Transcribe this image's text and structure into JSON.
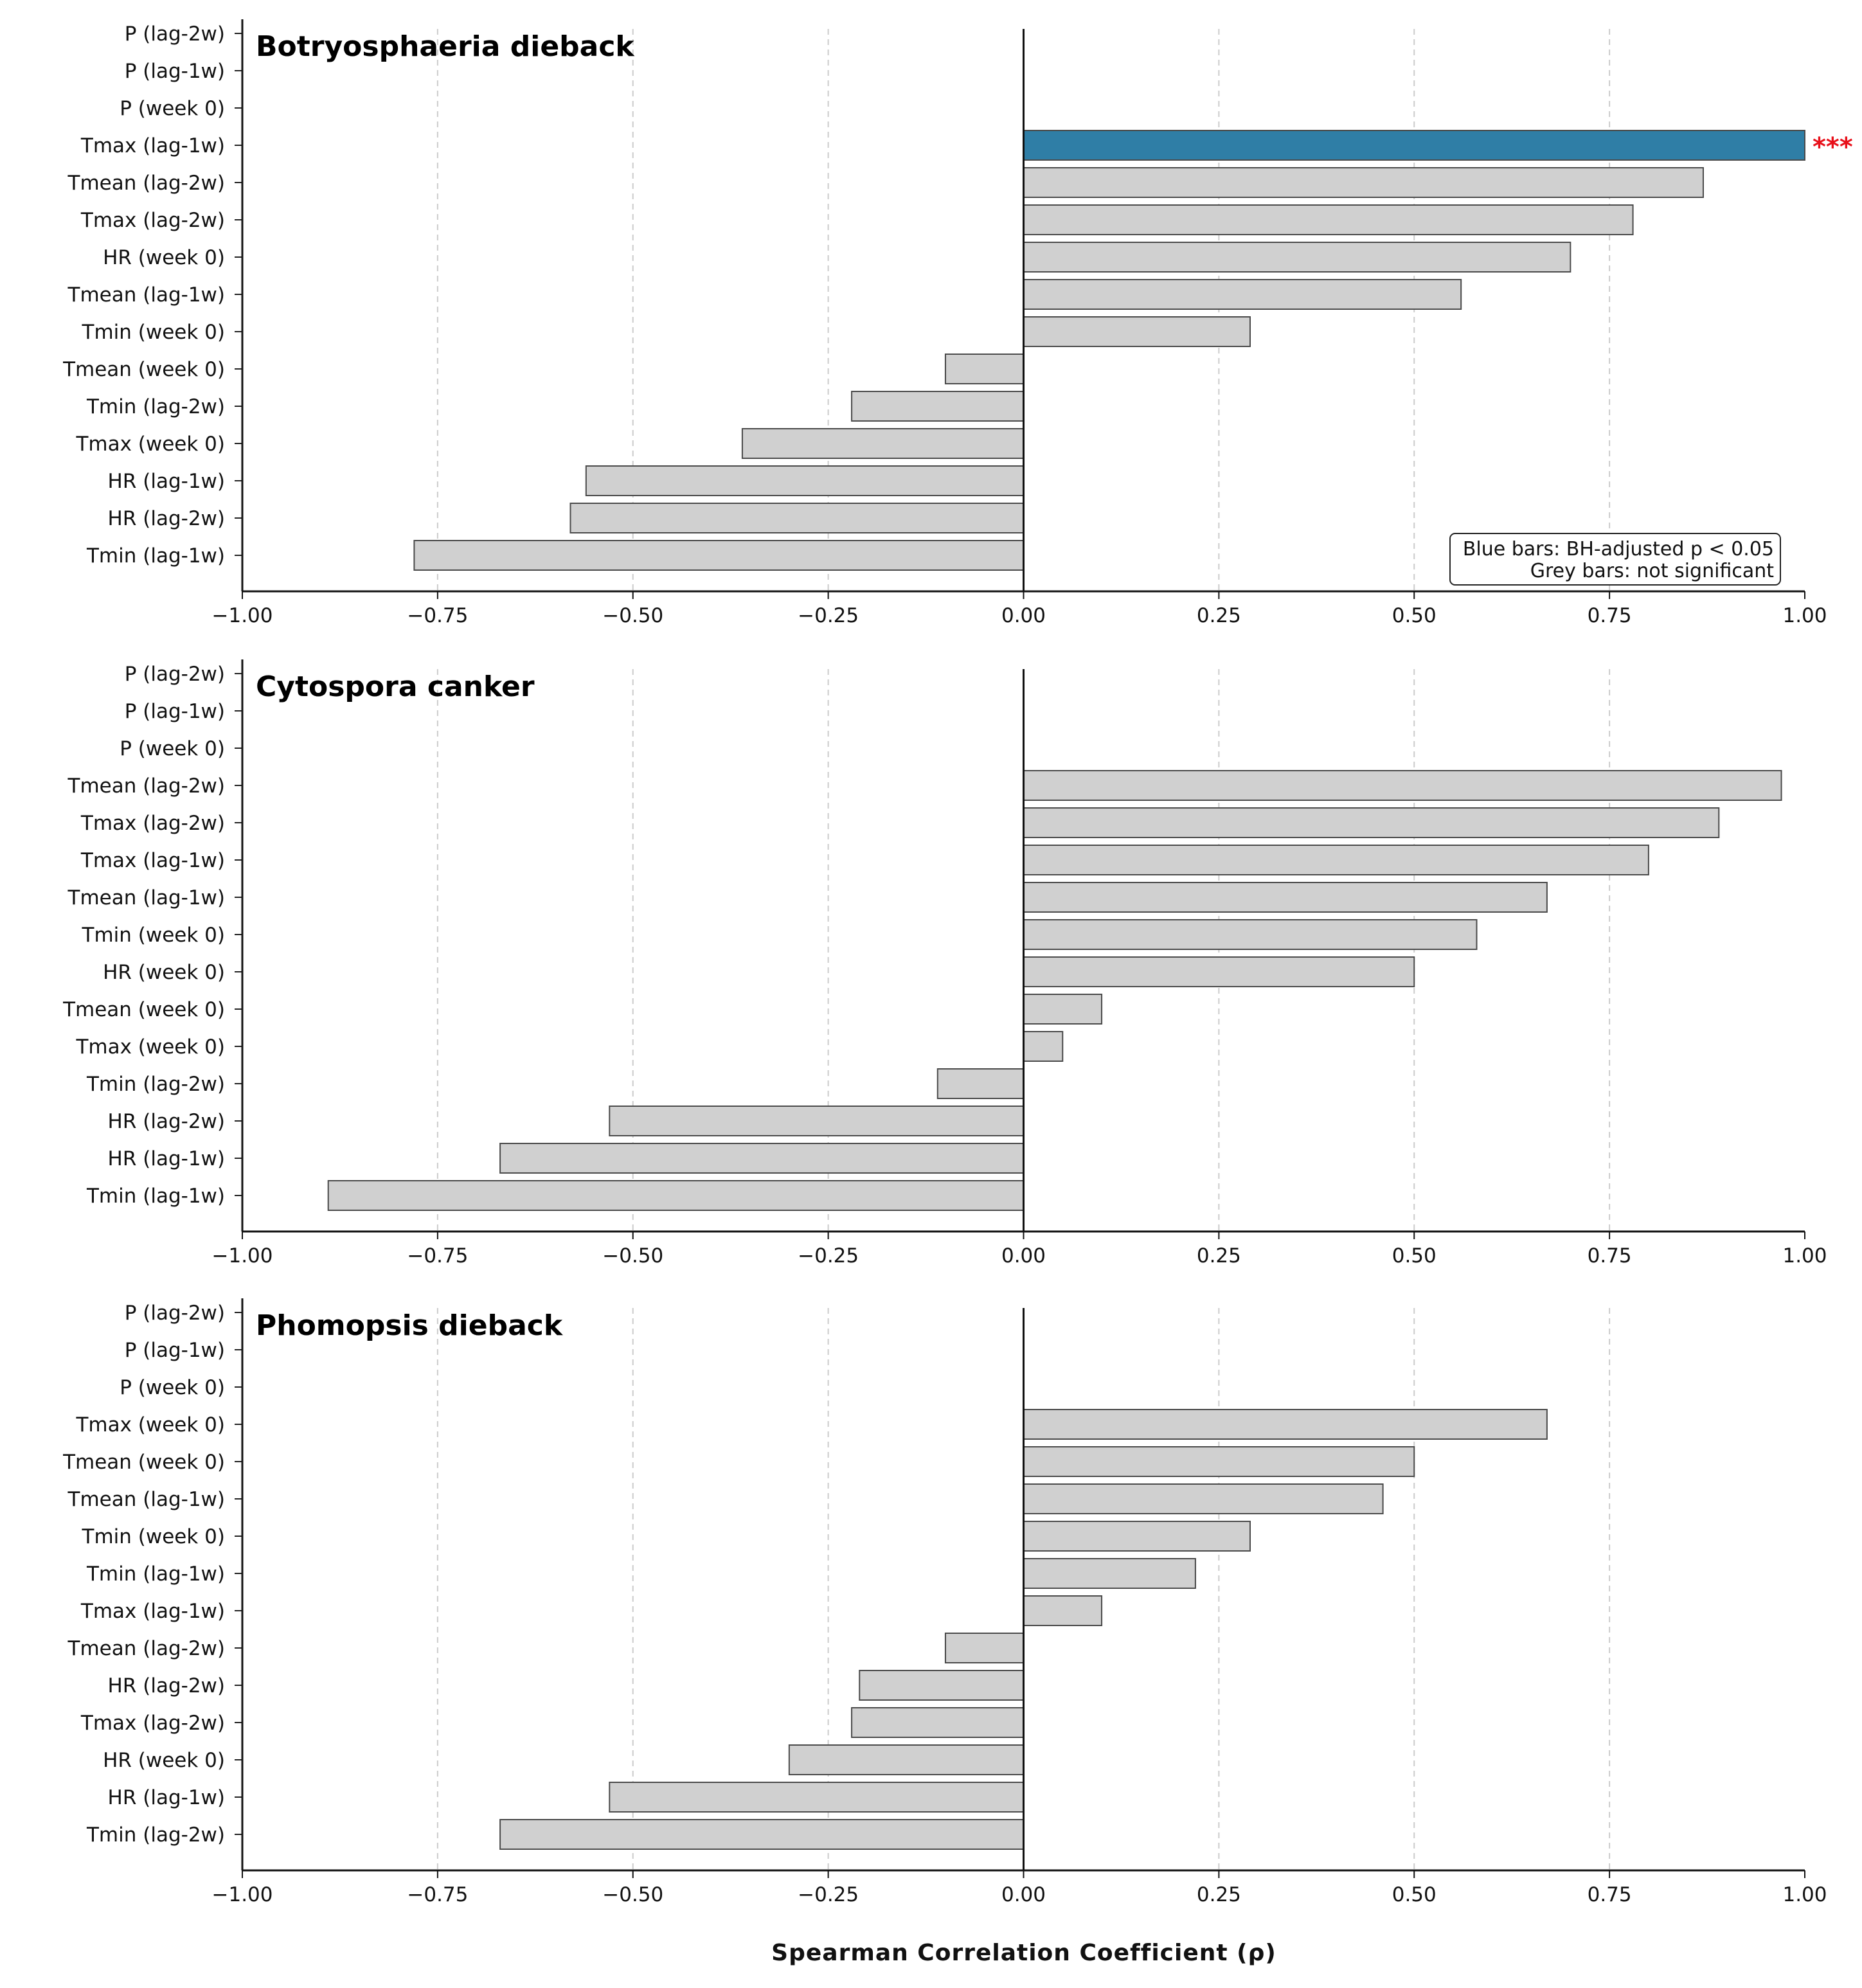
{
  "colors": {
    "significant": "#2f7ea6",
    "not_significant": "#d0d0d0",
    "bar_edge": "#4a4a4a",
    "grid": "#cccccc",
    "sig_mark": "#e8101a"
  },
  "legend": {
    "line1": "Blue bars: BH-adjusted p < 0.05",
    "line2": "Grey bars: not significant",
    "placement": "bottom-right of top panel"
  },
  "xlabel": "Spearman Correlation Coefficient (ρ)",
  "xticks": [
    "−1.00",
    "−0.75",
    "−0.50",
    "−0.25",
    "0.00",
    "0.25",
    "0.50",
    "0.75",
    "1.00"
  ],
  "chart_data": [
    {
      "type": "bar",
      "orientation": "horizontal",
      "title": "Botryosphaeria  dieback",
      "xlim": [
        -1.0,
        1.0
      ],
      "grid": "vertical dashed",
      "categories": [
        "P (lag-2w)",
        "P (lag-1w)",
        "P (week 0)",
        "Tmax (lag-1w)",
        "Tmean (lag-2w)",
        "Tmax (lag-2w)",
        "HR (week 0)",
        "Tmean (lag-1w)",
        "Tmin (week 0)",
        "Tmean (week 0)",
        "Tmin (lag-2w)",
        "Tmax (week 0)",
        "HR (lag-1w)",
        "HR (lag-2w)",
        "Tmin (lag-1w)"
      ],
      "values": [
        null,
        null,
        null,
        1.0,
        0.87,
        0.78,
        0.7,
        0.56,
        0.29,
        -0.1,
        -0.22,
        -0.36,
        -0.56,
        -0.58,
        -0.78
      ],
      "significant": [
        false,
        false,
        false,
        true,
        false,
        false,
        false,
        false,
        false,
        false,
        false,
        false,
        false,
        false,
        false
      ],
      "annotations": [
        {
          "category": "Tmax (lag-1w)",
          "text": "***"
        }
      ]
    },
    {
      "type": "bar",
      "orientation": "horizontal",
      "title": "Cytospora canker",
      "xlim": [
        -1.0,
        1.0
      ],
      "grid": "vertical dashed",
      "categories": [
        "P (lag-2w)",
        "P (lag-1w)",
        "P (week 0)",
        "Tmean (lag-2w)",
        "Tmax (lag-2w)",
        "Tmax (lag-1w)",
        "Tmean (lag-1w)",
        "Tmin (week 0)",
        "HR (week 0)",
        "Tmean (week 0)",
        "Tmax (week 0)",
        "Tmin (lag-2w)",
        "HR (lag-2w)",
        "HR (lag-1w)",
        "Tmin (lag-1w)"
      ],
      "values": [
        null,
        null,
        null,
        0.97,
        0.89,
        0.8,
        0.67,
        0.58,
        0.5,
        0.1,
        0.05,
        -0.11,
        -0.53,
        -0.67,
        -0.89
      ],
      "significant": [
        false,
        false,
        false,
        false,
        false,
        false,
        false,
        false,
        false,
        false,
        false,
        false,
        false,
        false,
        false
      ],
      "annotations": []
    },
    {
      "type": "bar",
      "orientation": "horizontal",
      "title": "Phomopsis dieback",
      "xlim": [
        -1.0,
        1.0
      ],
      "grid": "vertical dashed",
      "categories": [
        "P (lag-2w)",
        "P (lag-1w)",
        "P (week 0)",
        "Tmax (week 0)",
        "Tmean (week 0)",
        "Tmean (lag-1w)",
        "Tmin (week 0)",
        "Tmin (lag-1w)",
        "Tmax (lag-1w)",
        "Tmean (lag-2w)",
        "HR (lag-2w)",
        "Tmax (lag-2w)",
        "HR (week 0)",
        "HR (lag-1w)",
        "Tmin (lag-2w)"
      ],
      "values": [
        null,
        null,
        null,
        0.67,
        0.5,
        0.46,
        0.29,
        0.22,
        0.1,
        -0.1,
        -0.21,
        -0.22,
        -0.3,
        -0.53,
        -0.67
      ],
      "significant": [
        false,
        false,
        false,
        false,
        false,
        false,
        false,
        false,
        false,
        false,
        false,
        false,
        false,
        false,
        false
      ],
      "annotations": []
    }
  ]
}
